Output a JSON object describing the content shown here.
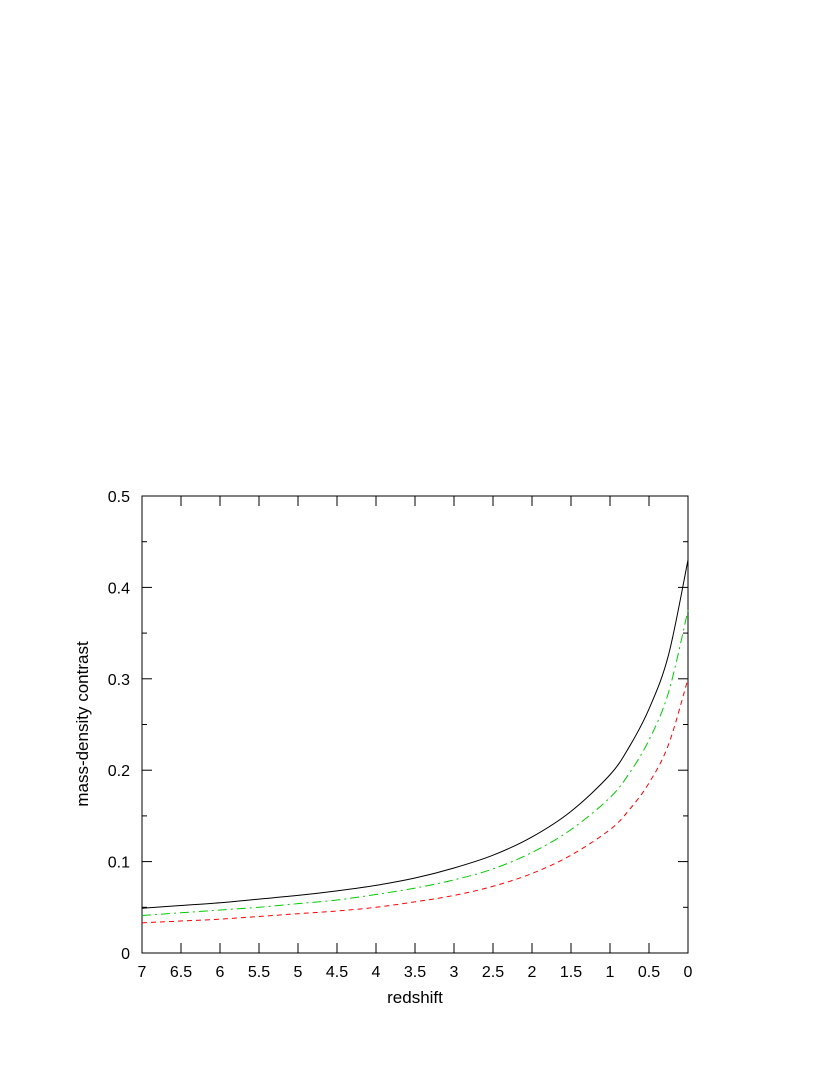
{
  "chart_data": {
    "type": "line",
    "xlabel": "redshift",
    "ylabel": "mass-density contrast",
    "xlim": [
      7,
      0
    ],
    "ylim": [
      0,
      0.5
    ],
    "x_reversed": true,
    "grid": false,
    "legend": "none",
    "x_ticks": [
      "7",
      "6.5",
      "6",
      "5.5",
      "5",
      "4.5",
      "4",
      "3.5",
      "3",
      "2.5",
      "2",
      "1.5",
      "1",
      "0.5",
      "0"
    ],
    "y_ticks": [
      "0",
      "0.1",
      "0.2",
      "0.3",
      "0.4",
      "0.5"
    ],
    "x": [
      7,
      6.5,
      6,
      5.5,
      5,
      4.5,
      4,
      3.5,
      3,
      2.5,
      2,
      1.5,
      1,
      0.75,
      0.5,
      0.25,
      0
    ],
    "series": [
      {
        "color": "#000000",
        "dash": "solid",
        "values": [
          0.049,
          0.052,
          0.055,
          0.059,
          0.063,
          0.068,
          0.074,
          0.082,
          0.093,
          0.107,
          0.127,
          0.155,
          0.195,
          0.226,
          0.267,
          0.326,
          0.43
        ]
      },
      {
        "color": "#00cc00",
        "dash": "dashdot",
        "values": [
          0.041,
          0.044,
          0.047,
          0.05,
          0.054,
          0.058,
          0.064,
          0.071,
          0.08,
          0.092,
          0.11,
          0.135,
          0.17,
          0.197,
          0.233,
          0.285,
          0.375
        ]
      },
      {
        "color": "#ff0000",
        "dash": "dashed",
        "values": [
          0.033,
          0.035,
          0.037,
          0.04,
          0.043,
          0.046,
          0.05,
          0.056,
          0.063,
          0.073,
          0.087,
          0.107,
          0.135,
          0.157,
          0.186,
          0.228,
          0.3
        ]
      }
    ]
  }
}
